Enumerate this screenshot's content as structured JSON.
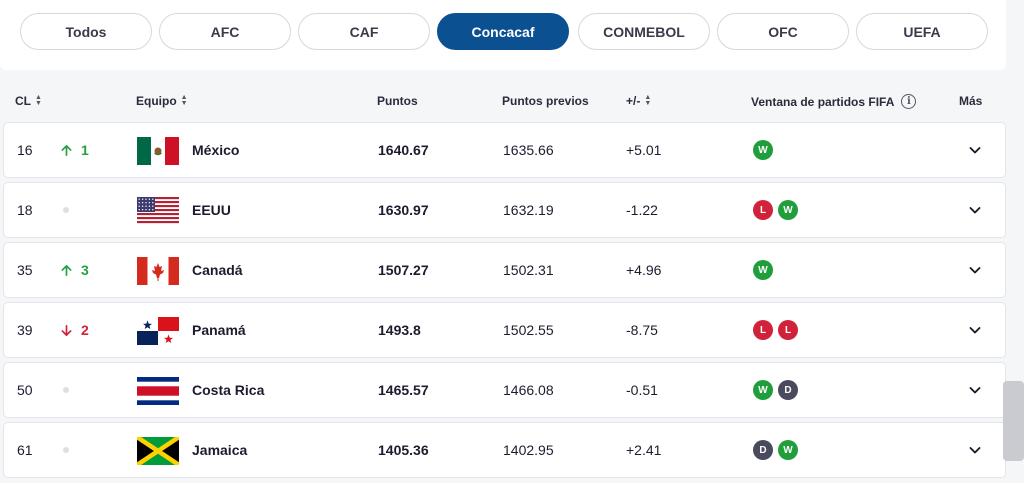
{
  "tabs": [
    {
      "label": "Todos",
      "active": false
    },
    {
      "label": "AFC",
      "active": false
    },
    {
      "label": "CAF",
      "active": false
    },
    {
      "label": "Concacaf",
      "active": true
    },
    {
      "label": "CONMEBOL",
      "active": false
    },
    {
      "label": "OFC",
      "active": false
    },
    {
      "label": "UEFA",
      "active": false
    }
  ],
  "header": {
    "rank": "CL",
    "team": "Equipo",
    "points": "Puntos",
    "prev_points": "Puntos previos",
    "diff": "+/-",
    "window": "Ventana de partidos FIFA",
    "more": "Más"
  },
  "rows": [
    {
      "rank": "16",
      "move": "up",
      "move_value": "1",
      "flag": "mexico",
      "team": "México",
      "points": "1640.67",
      "prev_points": "1635.66",
      "diff": "+5.01",
      "results": [
        "W"
      ]
    },
    {
      "rank": "18",
      "move": "none",
      "move_value": "",
      "flag": "usa",
      "team": "EEUU",
      "points": "1630.97",
      "prev_points": "1632.19",
      "diff": "-1.22",
      "results": [
        "L",
        "W"
      ]
    },
    {
      "rank": "35",
      "move": "up",
      "move_value": "3",
      "flag": "canada",
      "team": "Canadá",
      "points": "1507.27",
      "prev_points": "1502.31",
      "diff": "+4.96",
      "results": [
        "W"
      ]
    },
    {
      "rank": "39",
      "move": "down",
      "move_value": "2",
      "flag": "panama",
      "team": "Panamá",
      "points": "1493.8",
      "prev_points": "1502.55",
      "diff": "-8.75",
      "results": [
        "L",
        "L"
      ]
    },
    {
      "rank": "50",
      "move": "none",
      "move_value": "",
      "flag": "costa-rica",
      "team": "Costa Rica",
      "points": "1465.57",
      "prev_points": "1466.08",
      "diff": "-0.51",
      "results": [
        "W",
        "D"
      ]
    },
    {
      "rank": "61",
      "move": "none",
      "move_value": "",
      "flag": "jamaica",
      "team": "Jamaica",
      "points": "1405.36",
      "prev_points": "1402.95",
      "diff": "+2.41",
      "results": [
        "D",
        "W"
      ]
    }
  ],
  "colors": {
    "accent": "#0b5191",
    "win": "#1f9e3b",
    "loss": "#d0223a",
    "draw": "#4a4a5e",
    "up": "#23a042",
    "down": "#d0223a"
  },
  "icons": {
    "sort": "sort-icon",
    "info": "info-icon",
    "expand": "chevron-down-icon",
    "up": "arrow-up-icon",
    "down": "arrow-down-icon"
  }
}
